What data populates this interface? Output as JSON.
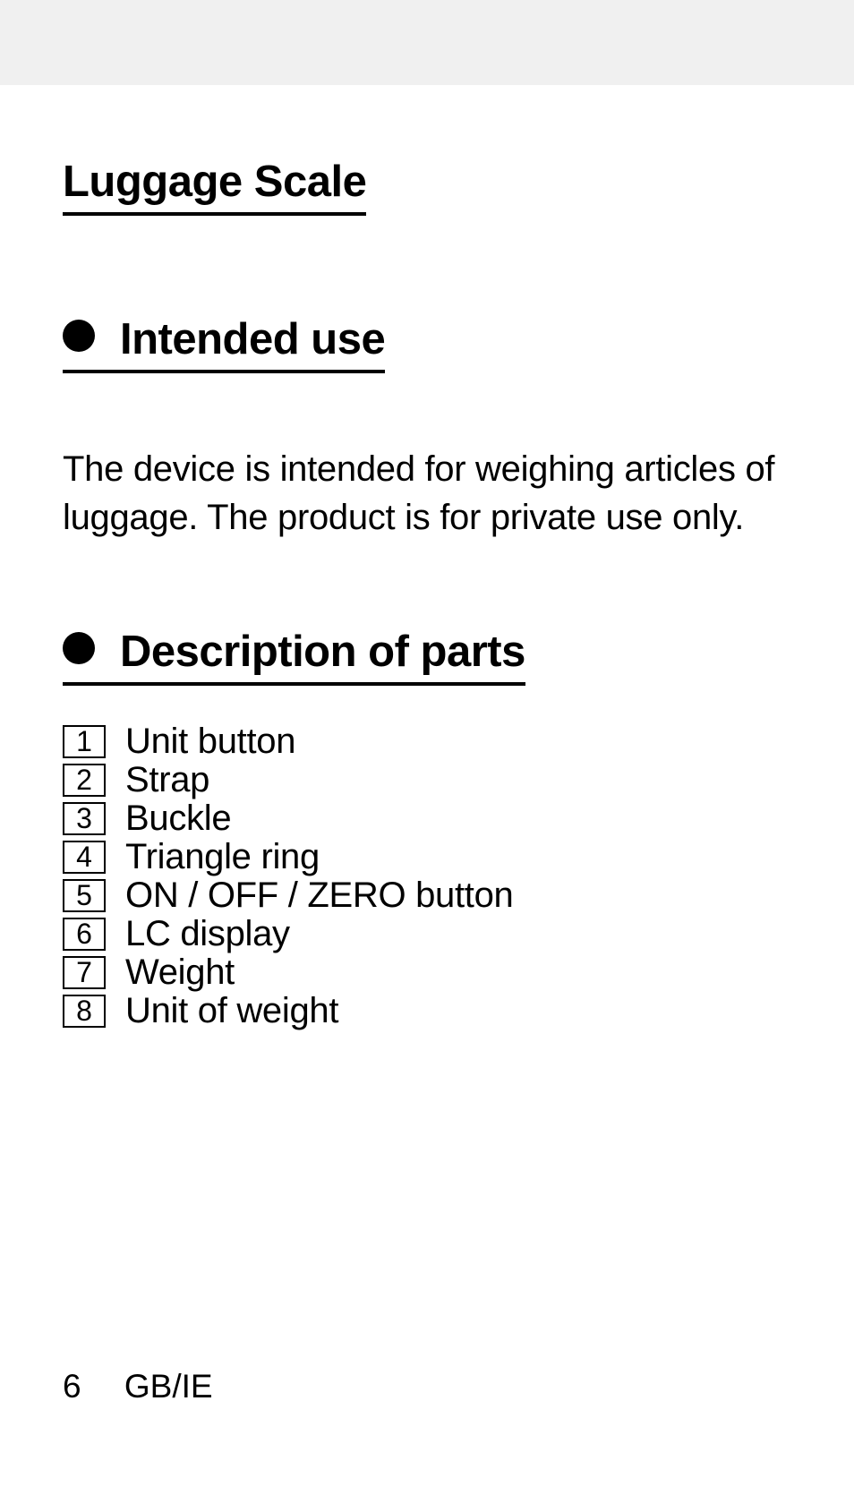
{
  "title": "Luggage Scale",
  "sections": [
    {
      "heading": "Intended use",
      "body": "The device is intended for weighing articles of luggage. The product is for private use only."
    },
    {
      "heading": "Description of parts",
      "parts": [
        {
          "num": "1",
          "label": "Unit button"
        },
        {
          "num": "2",
          "label": "Strap"
        },
        {
          "num": "3",
          "label": "Buckle"
        },
        {
          "num": "4",
          "label": "Triangle ring"
        },
        {
          "num": "5",
          "label": "ON / OFF / ZERO button"
        },
        {
          "num": "6",
          "label": "LC display"
        },
        {
          "num": "7",
          "label": "Weight"
        },
        {
          "num": "8",
          "label": "Unit of weight"
        }
      ]
    }
  ],
  "footer": {
    "page_number": "6",
    "region": "GB/IE"
  },
  "colors": {
    "page_bg": "#ffffff",
    "outer_bg": "#f0f0f0",
    "text": "#000000"
  }
}
